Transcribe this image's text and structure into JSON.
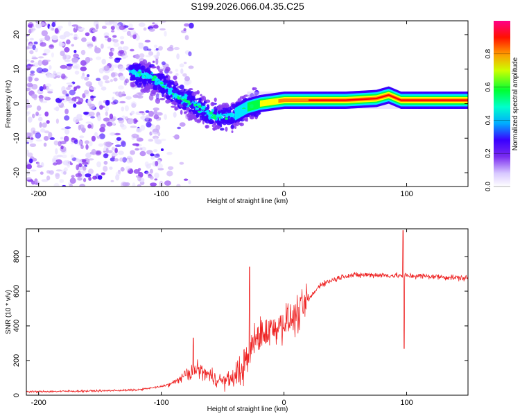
{
  "figure_title": "S199.2026.066.04.35.C25",
  "chart_data": [
    {
      "type": "heatmap",
      "title": "S199.2026.066.04.35.C25",
      "xlabel": "Height of straight line (km)",
      "ylabel": "Frequency (Hz)",
      "xlim": [
        -210,
        150
      ],
      "ylim": [
        -24,
        24
      ],
      "xticks": [
        -200,
        -100,
        0,
        100
      ],
      "yticks": [
        -20,
        -10,
        0,
        10,
        20
      ],
      "colorbar": {
        "label": "Normalized spectral amplitude",
        "range": [
          0.0,
          1.0
        ],
        "ticks": [
          0.0,
          0.2,
          0.4,
          0.6,
          0.8
        ],
        "tick_labels": [
          "0.0",
          "0.2",
          "0.4",
          "0.6",
          "0.8"
        ],
        "colormap": [
          "#e8e0ff",
          "#c8a8f8",
          "#8a3cf0",
          "#3a00ff",
          "#00e8ff",
          "#00ff44",
          "#ffff00",
          "#ff8800",
          "#ff0000",
          "#ff0066"
        ]
      },
      "signal_ridge": {
        "x": [
          -125,
          -110,
          -100,
          -90,
          -80,
          -70,
          -60,
          -50,
          -40,
          -30,
          -20,
          -10,
          0,
          20,
          50,
          75,
          85,
          95,
          120,
          150
        ],
        "freq": [
          9,
          8,
          6,
          3,
          1,
          -1,
          -3,
          -4,
          -3,
          -1,
          0,
          0.5,
          1,
          1,
          1,
          1.5,
          2.5,
          1,
          1,
          1
        ],
        "amplitude": [
          0.2,
          0.25,
          0.3,
          0.3,
          0.3,
          0.3,
          0.35,
          0.35,
          0.4,
          0.5,
          0.6,
          0.7,
          0.8,
          0.85,
          0.85,
          0.85,
          0.9,
          0.9,
          0.85,
          0.85
        ]
      },
      "noise_region": {
        "x_from": -210,
        "x_to": -100,
        "freq_range": [
          -24,
          24
        ]
      }
    },
    {
      "type": "line",
      "xlabel": "Height of straight line (km)",
      "ylabel": "SNR (10 * v/v)",
      "xlim": [
        -210,
        150
      ],
      "ylim": [
        0,
        960
      ],
      "xticks": [
        -200,
        -100,
        0,
        100
      ],
      "yticks": [
        0,
        200,
        400,
        600,
        800
      ],
      "series": [
        {
          "name": "SNR",
          "color": "#ee2222",
          "envelope_x": [
            -210,
            -150,
            -120,
            -100,
            -90,
            -80,
            -70,
            -60,
            -50,
            -40,
            -30,
            -25,
            -20,
            -10,
            0,
            10,
            20,
            30,
            50,
            70,
            90,
            100,
            120,
            150
          ],
          "envelope_y": [
            20,
            25,
            30,
            50,
            70,
            120,
            150,
            110,
            80,
            100,
            200,
            300,
            350,
            380,
            420,
            450,
            550,
            640,
            690,
            695,
            690,
            690,
            685,
            675
          ],
          "spikes": [
            {
              "x": -74,
              "y": 330
            },
            {
              "x": -28,
              "y": 740
            },
            {
              "x": 97,
              "y": 950
            },
            {
              "x": 98,
              "y": 270
            }
          ]
        }
      ]
    }
  ]
}
